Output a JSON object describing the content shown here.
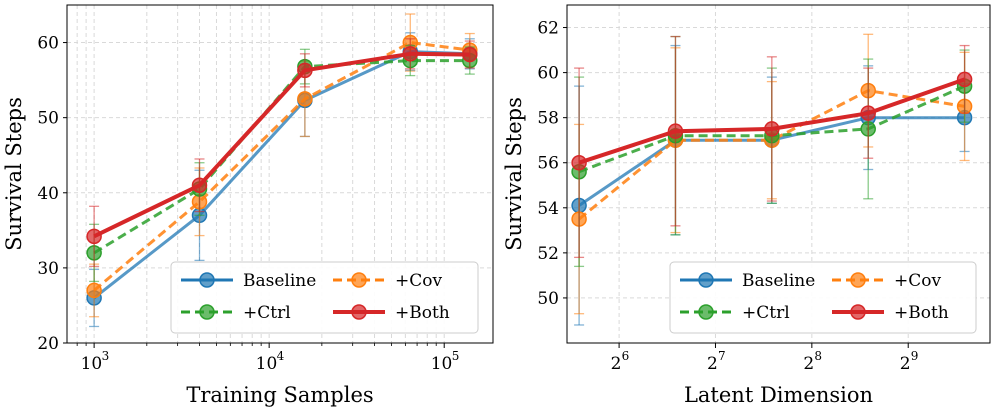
{
  "chart_data": [
    {
      "type": "line",
      "x_scale": "log10",
      "xlabel": "Training Samples",
      "ylabel": "Survival Steps",
      "xlim": [
        700,
        190000
      ],
      "ylim": [
        20,
        65
      ],
      "x_major_ticks": [
        1000,
        10000,
        100000
      ],
      "x_tick_labels": [
        {
          "base": "10",
          "exp": "3"
        },
        {
          "base": "10",
          "exp": "4"
        },
        {
          "base": "10",
          "exp": "5"
        }
      ],
      "y_ticks": [
        20,
        30,
        40,
        50,
        60
      ],
      "legend_position": "bottom-right",
      "x": [
        1000,
        4000,
        16000,
        64000,
        140000
      ],
      "series": [
        {
          "name": "Baseline",
          "color": "#1f77b4",
          "dash": "solid",
          "values": [
            26.0,
            37.0,
            52.3,
            58.8,
            58.5
          ],
          "err": [
            3.8,
            6.0,
            4.8,
            2.5,
            2.0
          ]
        },
        {
          "name": "+Cov",
          "color": "#ff7f0e",
          "dash": "dashed",
          "values": [
            27.0,
            38.8,
            52.5,
            60.0,
            59.0
          ],
          "err": [
            3.5,
            4.5,
            5.0,
            3.8,
            2.2
          ]
        },
        {
          "name": "+Ctrl",
          "color": "#2ca02c",
          "dash": "dashed",
          "values": [
            32.0,
            40.5,
            56.8,
            57.6,
            57.6
          ],
          "err": [
            3.8,
            3.5,
            2.3,
            2.0,
            1.8
          ]
        },
        {
          "name": "+Both",
          "color": "#d62728",
          "dash": "solid",
          "values": [
            34.2,
            41.0,
            56.3,
            58.5,
            58.4
          ],
          "err": [
            4.0,
            3.5,
            2.2,
            2.0,
            1.8
          ]
        }
      ]
    },
    {
      "type": "line",
      "x_scale": "log2",
      "xlabel": "Latent Dimension",
      "ylabel": "Survival Steps",
      "xlim": [
        44,
        922
      ],
      "ylim": [
        48,
        63
      ],
      "x_major_ticks": [
        64,
        128,
        256,
        512
      ],
      "x_tick_labels": [
        {
          "base": "2",
          "exp": "6"
        },
        {
          "base": "2",
          "exp": "7"
        },
        {
          "base": "2",
          "exp": "8"
        },
        {
          "base": "2",
          "exp": "9"
        }
      ],
      "y_ticks": [
        50,
        52,
        54,
        56,
        58,
        60,
        62
      ],
      "legend_position": "bottom-right",
      "x": [
        48,
        96,
        192,
        384,
        768
      ],
      "series": [
        {
          "name": "Baseline",
          "color": "#1f77b4",
          "dash": "solid",
          "values": [
            54.1,
            57.0,
            57.0,
            58.0,
            58.0
          ],
          "err": [
            5.3,
            4.2,
            2.8,
            2.3,
            1.5
          ]
        },
        {
          "name": "+Cov",
          "color": "#ff7f0e",
          "dash": "dashed",
          "values": [
            53.5,
            57.0,
            57.0,
            59.2,
            58.5
          ],
          "err": [
            4.2,
            4.1,
            2.6,
            2.5,
            2.4
          ]
        },
        {
          "name": "+Ctrl",
          "color": "#2ca02c",
          "dash": "dashed",
          "values": [
            55.6,
            57.2,
            57.2,
            57.5,
            59.4
          ],
          "err": [
            4.2,
            4.4,
            3.0,
            3.1,
            1.6
          ]
        },
        {
          "name": "+Both",
          "color": "#d62728",
          "dash": "solid",
          "values": [
            56.0,
            57.4,
            57.5,
            58.2,
            59.7
          ],
          "err": [
            4.2,
            4.2,
            3.2,
            2.0,
            1.5
          ]
        }
      ]
    }
  ]
}
